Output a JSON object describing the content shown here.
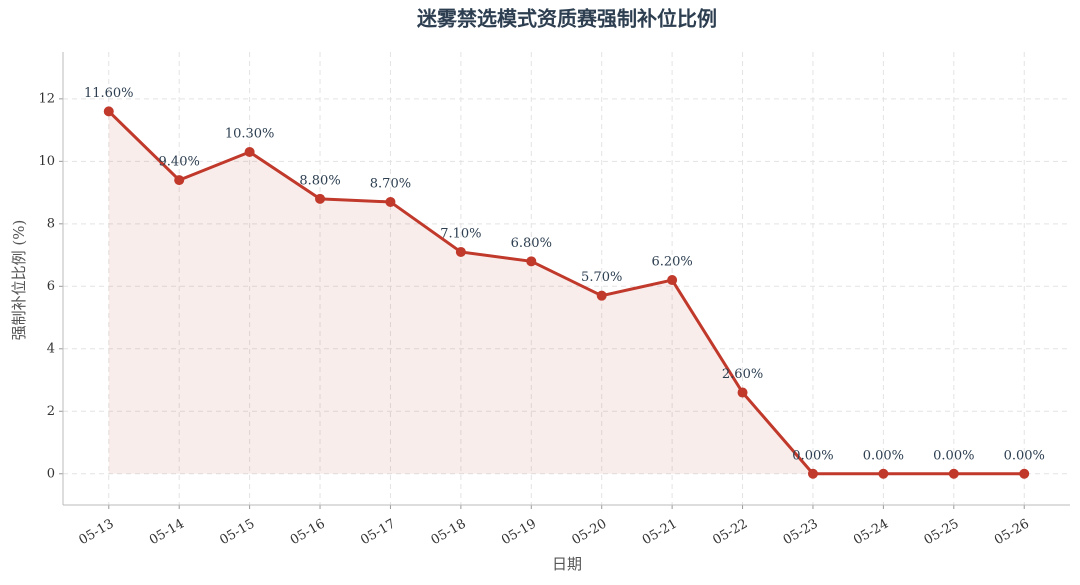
{
  "chart_data": {
    "type": "line",
    "title": "迷雾禁选模式资质赛强制补位比例",
    "x_label": "日期",
    "y_label": "强制补位比例 (%)",
    "categories": [
      "05-13",
      "05-14",
      "05-15",
      "05-16",
      "05-17",
      "05-18",
      "05-19",
      "05-20",
      "05-21",
      "05-22",
      "05-23",
      "05-24",
      "05-25",
      "05-26"
    ],
    "values": [
      11.6,
      9.4,
      10.3,
      8.8,
      8.7,
      7.1,
      6.8,
      5.7,
      6.2,
      2.6,
      0,
      0,
      0,
      0
    ],
    "value_labels": [
      "11.60%",
      "9.40%",
      "10.30%",
      "8.80%",
      "8.70%",
      "7.10%",
      "6.80%",
      "5.70%",
      "6.20%",
      "2.60%",
      "0.00%",
      "0.00%",
      "0.00%",
      "0.00%"
    ],
    "color": "#c0392b",
    "fill": true,
    "ylim": [
      -1,
      13.5
    ],
    "yticks": [
      0,
      2,
      4,
      6,
      8,
      10,
      12
    ],
    "grid": true
  }
}
